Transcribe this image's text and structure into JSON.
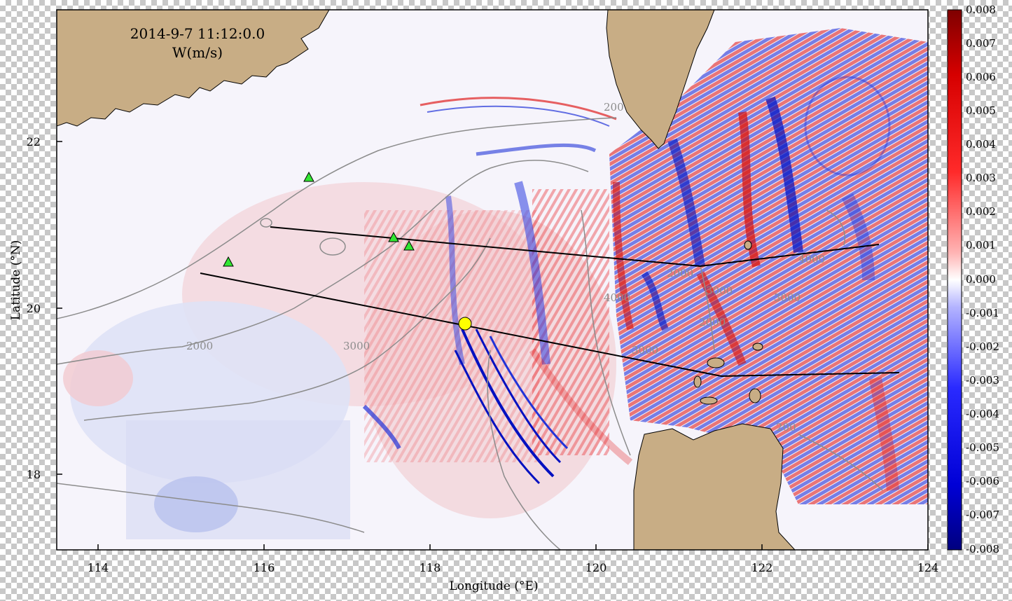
{
  "title": {
    "line1": "2014-9-7 11:12:0.0",
    "line2": "W(m/s)"
  },
  "axes": {
    "xlabel": "Longitude (°E)",
    "ylabel": "Latitude (°N)",
    "x_ticks": [
      "114",
      "116",
      "118",
      "120",
      "122",
      "124"
    ],
    "y_ticks": [
      "18",
      "20",
      "22"
    ]
  },
  "colorbar": {
    "labels": [
      "0.008",
      "0.007",
      "0.006",
      "0.005",
      "0.004",
      "0.003",
      "0.002",
      "0.001",
      "0.000",
      "-0.001",
      "-0.002",
      "-0.003",
      "-0.004",
      "-0.005",
      "-0.006",
      "-0.007",
      "-0.008"
    ],
    "colors": {
      "max": "#7f0000",
      "pos": "#ff0000",
      "zero": "#ffffff",
      "neg": "#0000ff",
      "min": "#00007f"
    }
  },
  "contour_labels": [
    "200",
    "2000",
    "3000",
    "4000",
    "2000",
    "3000",
    "4000",
    "3000",
    "2000",
    "3000",
    "200"
  ],
  "colors": {
    "land": "#c8ad85",
    "contour": "#8c8c8c",
    "sea": "#f6f4fb",
    "station": "#33e633",
    "marker": "#ffff00"
  }
}
